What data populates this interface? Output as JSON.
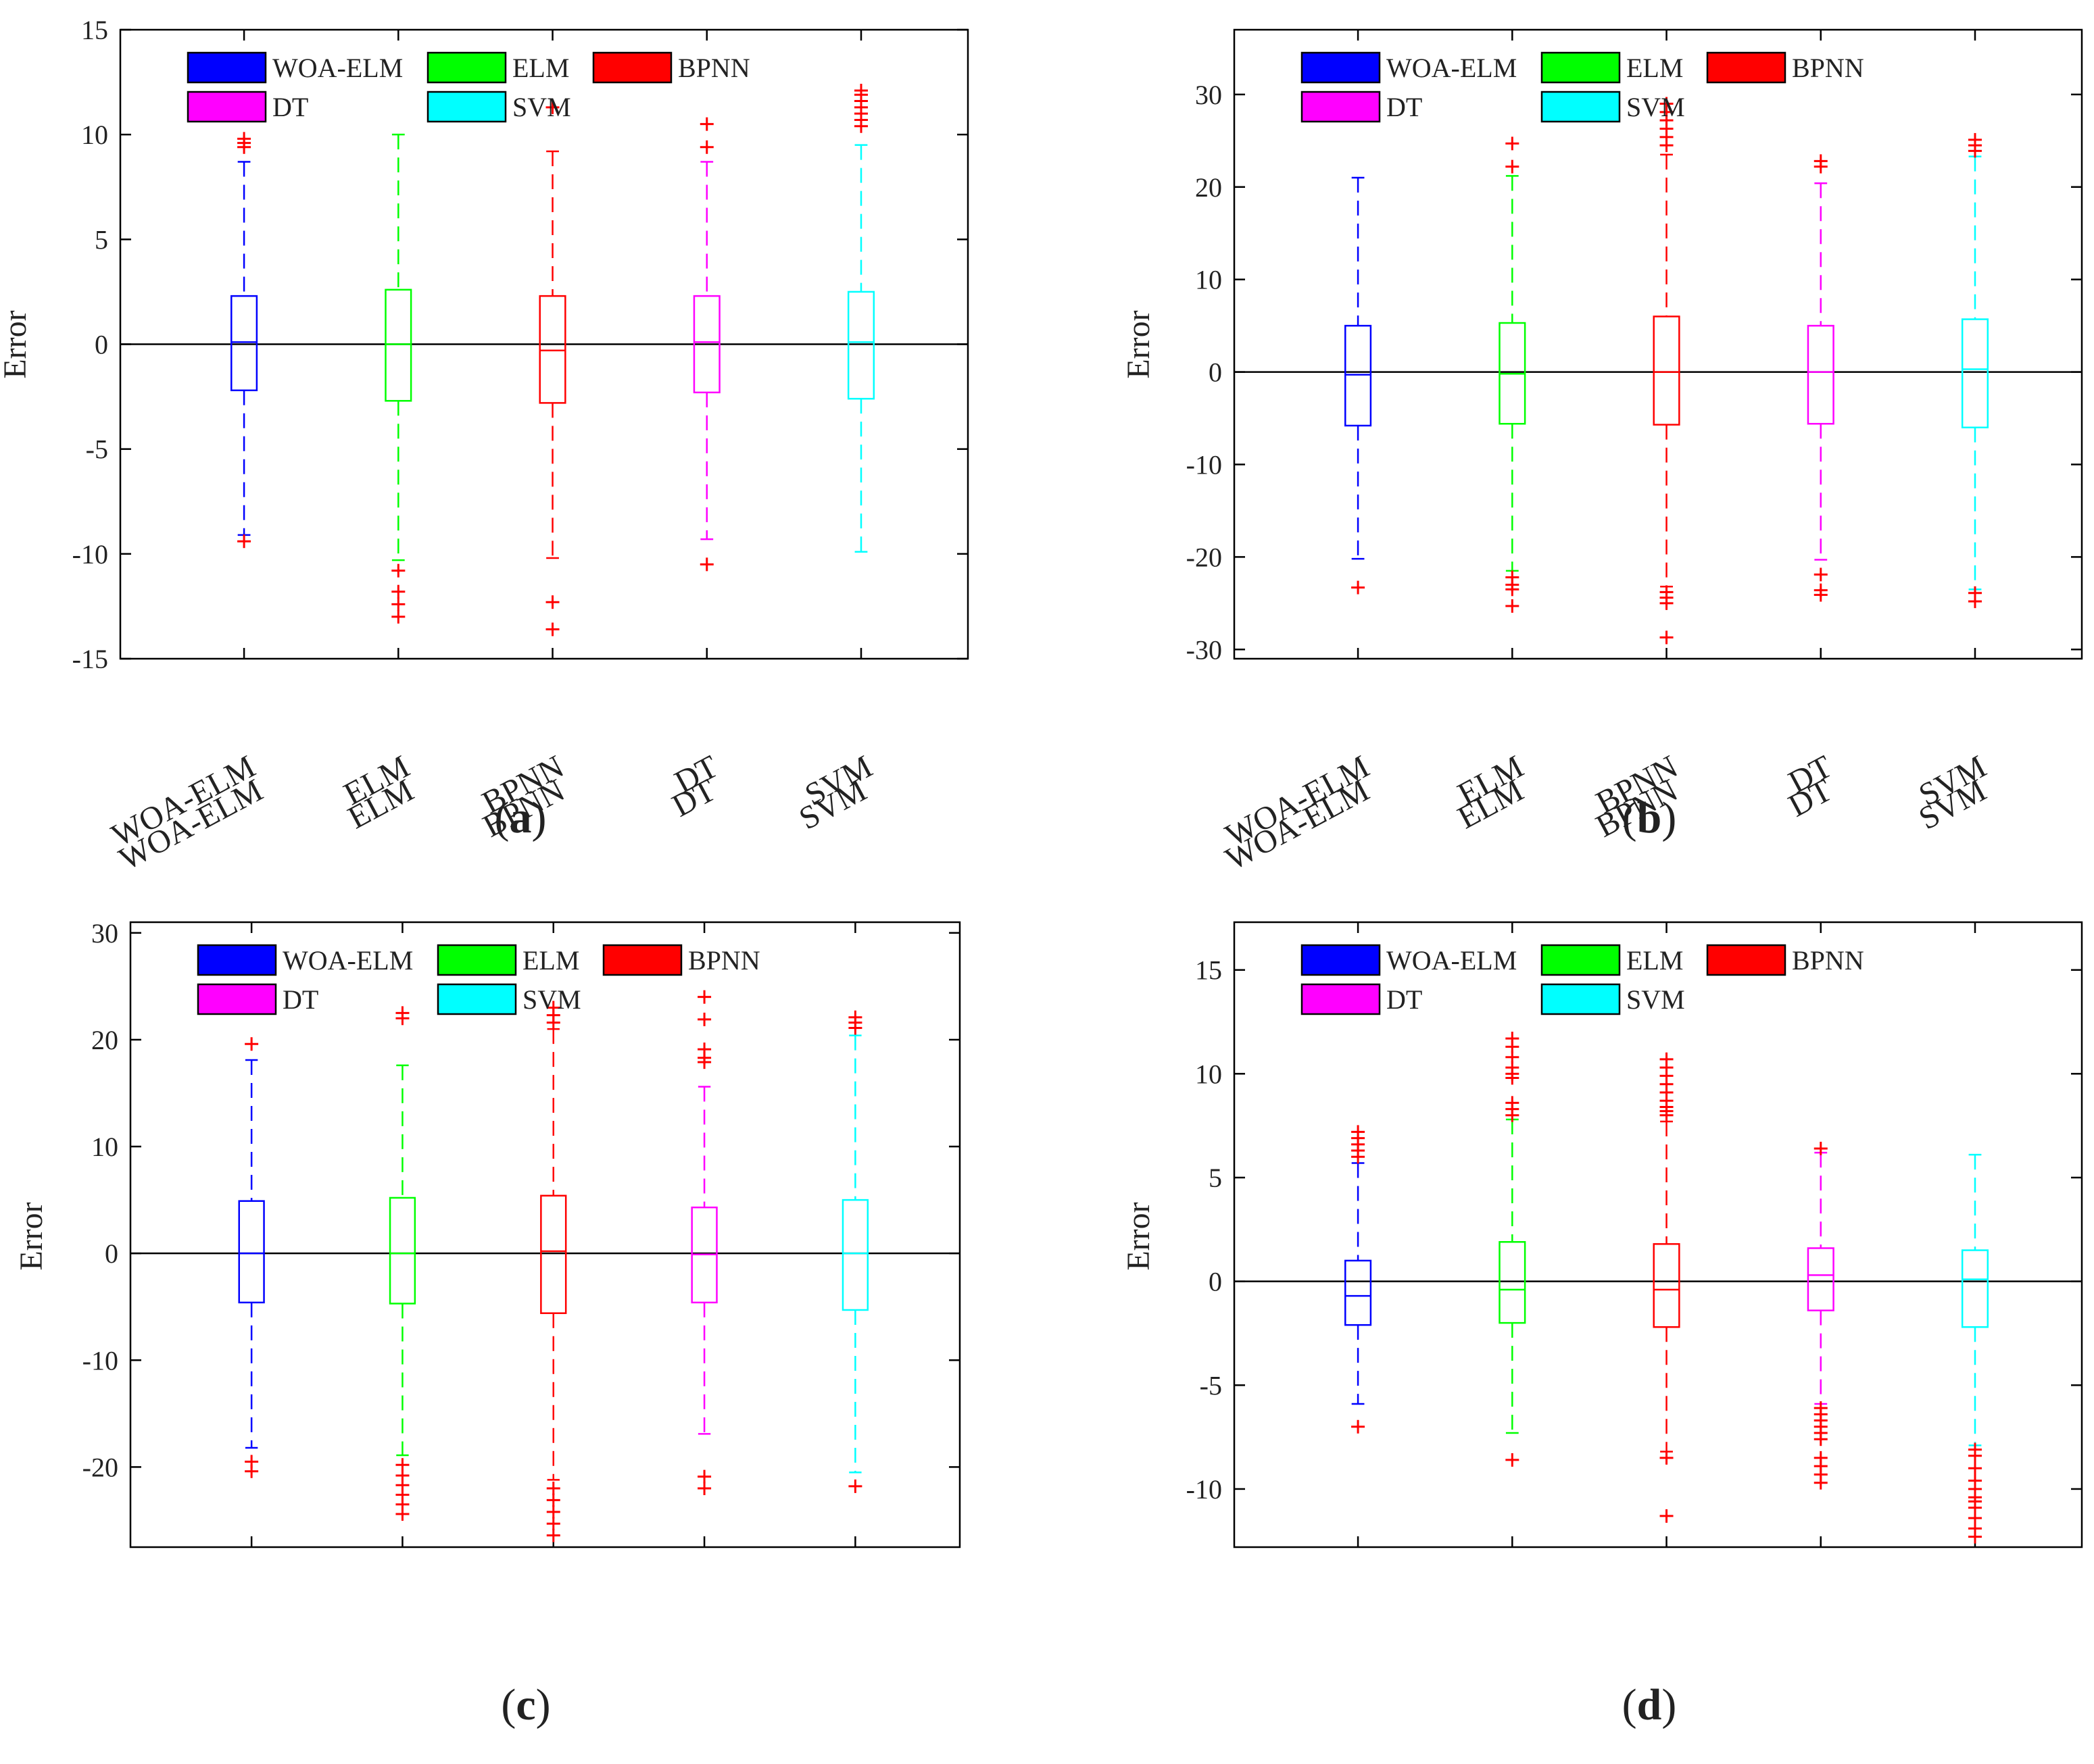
{
  "colors": {
    "WOA-ELM": "#0000ff",
    "ELM": "#00ff00",
    "BPNN": "#ff0000",
    "DT": "#ff00ff",
    "SVM": "#00ffff",
    "outlier": "#ff0000",
    "zero_line": "#000000"
  },
  "chart_data": [
    {
      "type": "box",
      "panel_label": "a",
      "ylabel": "Error",
      "ylim": [
        -15,
        15
      ],
      "yticks": [
        -15,
        -10,
        -5,
        0,
        5,
        10,
        15
      ],
      "categories": [
        "WOA-ELM",
        "ELM",
        "BPNN",
        "DT",
        "SVM"
      ],
      "legend": [
        "WOA-ELM",
        "ELM",
        "BPNN",
        "DT",
        "SVM"
      ],
      "reference_line": 0,
      "series": [
        {
          "name": "WOA-ELM",
          "whisker_low": -9.1,
          "q1": -2.2,
          "median": 0.1,
          "q3": 2.3,
          "whisker_high": 8.7,
          "outliers": [
            9.4,
            9.6,
            9.8,
            -9.4
          ]
        },
        {
          "name": "ELM",
          "whisker_low": -10.3,
          "q1": -2.7,
          "median": 0.0,
          "q3": 2.6,
          "whisker_high": 10.0,
          "outliers": [
            -10.8,
            -11.8,
            -12.4,
            -13.0
          ]
        },
        {
          "name": "BPNN",
          "whisker_low": -10.2,
          "q1": -2.8,
          "median": -0.3,
          "q3": 2.3,
          "whisker_high": 9.2,
          "outliers": [
            11.3,
            -12.3,
            -13.6
          ]
        },
        {
          "name": "DT",
          "whisker_low": -9.3,
          "q1": -2.3,
          "median": 0.1,
          "q3": 2.3,
          "whisker_high": 8.7,
          "outliers": [
            9.4,
            10.5,
            -10.5
          ]
        },
        {
          "name": "SVM",
          "whisker_low": -9.9,
          "q1": -2.6,
          "median": 0.1,
          "q3": 2.5,
          "whisker_high": 9.5,
          "outliers": [
            10.4,
            10.7,
            11.0,
            11.3,
            11.6,
            11.9,
            12.1
          ]
        }
      ]
    },
    {
      "type": "box",
      "panel_label": "b",
      "ylabel": "Error",
      "ylim": [
        -31,
        37
      ],
      "yticks": [
        -30,
        -20,
        -10,
        0,
        10,
        20,
        30
      ],
      "categories": [
        "WOA-ELM",
        "ELM",
        "BPNN",
        "DT",
        "SVM"
      ],
      "legend": [
        "WOA-ELM",
        "ELM",
        "BPNN",
        "DT",
        "SVM"
      ],
      "reference_line": 0,
      "series": [
        {
          "name": "WOA-ELM",
          "whisker_low": -20.2,
          "q1": -5.8,
          "median": -0.3,
          "q3": 5.0,
          "whisker_high": 21.0,
          "outliers": [
            -23.3
          ]
        },
        {
          "name": "ELM",
          "whisker_low": -21.5,
          "q1": -5.6,
          "median": -0.2,
          "q3": 5.3,
          "whisker_high": 21.2,
          "outliers": [
            22.2,
            24.7,
            -22.2,
            -23.0,
            -23.5,
            -25.3
          ]
        },
        {
          "name": "BPNN",
          "whisker_low": -23.2,
          "q1": -5.7,
          "median": 0.0,
          "q3": 6.0,
          "whisker_high": 23.5,
          "outliers": [
            24.5,
            25.4,
            26.3,
            27.2,
            28.1,
            29.0,
            -23.8,
            -24.4,
            -25.0,
            -28.7
          ]
        },
        {
          "name": "DT",
          "whisker_low": -20.3,
          "q1": -5.6,
          "median": 0.0,
          "q3": 5.0,
          "whisker_high": 20.4,
          "outliers": [
            22.2,
            22.8,
            -21.9,
            -23.6,
            -24.1
          ]
        },
        {
          "name": "SVM",
          "whisker_low": -23.5,
          "q1": -6.0,
          "median": 0.3,
          "q3": 5.7,
          "whisker_high": 23.3,
          "outliers": [
            23.9,
            24.5,
            25.1,
            -23.9,
            -24.8
          ]
        }
      ]
    },
    {
      "type": "box",
      "panel_label": "c",
      "ylabel": "Error",
      "ylim": [
        -27.5,
        31
      ],
      "yticks": [
        -20,
        -10,
        0,
        10,
        20,
        30
      ],
      "categories": [
        "WOA-ELM",
        "ELM",
        "BPNN",
        "DT",
        "SVM"
      ],
      "legend": [
        "WOA-ELM",
        "ELM",
        "BPNN",
        "DT",
        "SVM"
      ],
      "reference_line": 0,
      "series": [
        {
          "name": "WOA-ELM",
          "whisker_low": -18.2,
          "q1": -4.6,
          "median": 0.0,
          "q3": 4.9,
          "whisker_high": 18.1,
          "outliers": [
            19.6,
            -19.5,
            -20.4
          ]
        },
        {
          "name": "ELM",
          "whisker_low": -18.9,
          "q1": -4.7,
          "median": 0.0,
          "q3": 5.2,
          "whisker_high": 17.6,
          "outliers": [
            22.0,
            22.5,
            -19.8,
            -20.8,
            -21.7,
            -22.6,
            -23.5,
            -24.4
          ]
        },
        {
          "name": "BPNN",
          "whisker_low": -21.2,
          "q1": -5.6,
          "median": 0.2,
          "q3": 5.4,
          "whisker_high": 21.0,
          "outliers": [
            21.6,
            22.3,
            23.0,
            -22.0,
            -23.1,
            -24.2,
            -25.3,
            -26.4
          ]
        },
        {
          "name": "DT",
          "whisker_low": -16.9,
          "q1": -4.6,
          "median": -0.1,
          "q3": 4.3,
          "whisker_high": 15.6,
          "outliers": [
            17.9,
            18.3,
            19.1,
            21.9,
            24.0,
            -20.9,
            -22.0
          ]
        },
        {
          "name": "SVM",
          "whisker_low": -20.5,
          "q1": -5.3,
          "median": 0.0,
          "q3": 5.0,
          "whisker_high": 20.4,
          "outliers": [
            21.1,
            21.6,
            22.1,
            -21.8
          ]
        }
      ]
    },
    {
      "type": "box",
      "panel_label": "d",
      "ylabel": "Error",
      "ylim": [
        -12.8,
        17.3
      ],
      "yticks": [
        -10,
        -5,
        0,
        5,
        10,
        15
      ],
      "categories": [
        "WOA-ELM",
        "ELM",
        "BPNN",
        "DT",
        "SVM"
      ],
      "legend": [
        "WOA-ELM",
        "ELM",
        "BPNN",
        "DT",
        "SVM"
      ],
      "reference_line": 0,
      "series": [
        {
          "name": "WOA-ELM",
          "whisker_low": -5.9,
          "q1": -2.1,
          "median": -0.7,
          "q3": 1.0,
          "whisker_high": 5.7,
          "outliers": [
            6.0,
            6.3,
            6.6,
            6.9,
            7.2,
            -7.0
          ]
        },
        {
          "name": "ELM",
          "whisker_low": -7.3,
          "q1": -2.0,
          "median": -0.4,
          "q3": 1.9,
          "whisker_high": 7.8,
          "outliers": [
            8.0,
            8.3,
            8.6,
            9.8,
            10.0,
            10.3,
            10.8,
            11.3,
            11.7,
            -8.6
          ]
        },
        {
          "name": "BPNN",
          "whisker_low": -8.2,
          "q1": -2.2,
          "median": -0.4,
          "q3": 1.8,
          "whisker_high": 7.7,
          "outliers": [
            8.0,
            8.2,
            8.4,
            8.7,
            9.1,
            9.5,
            9.9,
            10.3,
            10.7,
            -8.5,
            -11.3
          ]
        },
        {
          "name": "DT",
          "whisker_low": -5.9,
          "q1": -1.4,
          "median": 0.3,
          "q3": 1.6,
          "whisker_high": 6.2,
          "outliers": [
            6.4,
            -6.1,
            -6.4,
            -6.7,
            -7.0,
            -7.3,
            -7.6,
            -8.5,
            -8.9,
            -9.3,
            -9.7
          ]
        },
        {
          "name": "SVM",
          "whisker_low": -7.9,
          "q1": -2.2,
          "median": 0.1,
          "q3": 1.5,
          "whisker_high": 6.1,
          "outliers": [
            -8.1,
            -8.4,
            -9.0,
            -9.6,
            -10.0,
            -10.4,
            -10.6,
            -10.9,
            -11.4,
            -11.9,
            -12.3
          ]
        }
      ]
    }
  ]
}
